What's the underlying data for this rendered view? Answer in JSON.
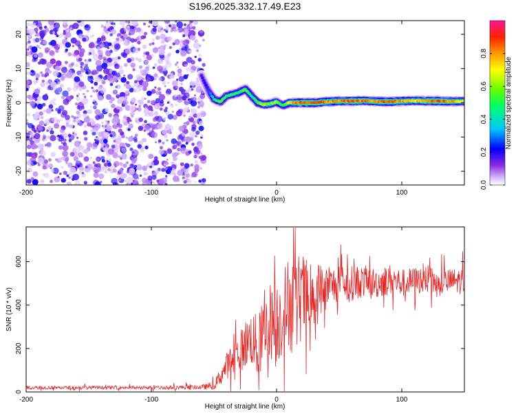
{
  "title": "S196.2025.332.17.49.E23",
  "colors": {
    "snr_line": "#ee2222",
    "axis": "#000000"
  },
  "chart_data": [
    {
      "type": "heatmap",
      "title": "S196.2025.332.17.49.E23",
      "xlabel": "Height of straight line (km)",
      "ylabel": "Frequency (Hz)",
      "xlim": [
        -200,
        150
      ],
      "ylim": [
        -24,
        24
      ],
      "xticks": [
        -200,
        -100,
        0,
        100
      ],
      "xtick_labels": [
        "-200",
        "-100",
        "0",
        "100"
      ],
      "yticks": [
        -20,
        -10,
        0,
        10,
        20
      ],
      "ytick_labels": [
        "-20",
        "-10",
        "0",
        "10",
        "20"
      ],
      "noise_region": {
        "x_from": -200,
        "x_to": -58,
        "description": "scattered low-amplitude purple noise"
      },
      "ridge": {
        "x": [
          -60,
          -55,
          -50,
          -45,
          -40,
          -35,
          -30,
          -25,
          -20,
          -15,
          -10,
          -5,
          0,
          5,
          10,
          15,
          20,
          30,
          40,
          50,
          60,
          70,
          80,
          90,
          100,
          110,
          120,
          130,
          140,
          150
        ],
        "frequency": [
          8,
          4,
          1,
          0.3,
          2,
          2.5,
          3,
          4,
          2,
          0,
          -0.5,
          -0.3,
          0.3,
          -0.8,
          0,
          0,
          0,
          0,
          0.3,
          0.5,
          0.5,
          0.6,
          0.4,
          0.3,
          0.5,
          0.6,
          0.5,
          0.5,
          0.4,
          0.4
        ],
        "amplitude": [
          0.2,
          0.25,
          0.45,
          0.6,
          0.5,
          0.55,
          0.55,
          0.6,
          0.5,
          0.6,
          0.7,
          0.65,
          0.7,
          0.5,
          0.75,
          0.9,
          0.95,
          0.95,
          0.9,
          0.85,
          0.95,
          0.9,
          0.85,
          0.95,
          0.85,
          0.8,
          0.9,
          0.95,
          0.85,
          0.8
        ]
      },
      "colorbar": {
        "label": "Normalized spectral amplitude",
        "range": [
          0,
          1
        ],
        "ticks": [
          0.0,
          0.2,
          0.4,
          0.6,
          0.8
        ],
        "tick_labels": [
          "0.0",
          "0.2",
          "0.4",
          "0.6",
          "0.8"
        ],
        "colormap": "purple-blue-cyan-green-yellow-orange-red-magenta"
      }
    },
    {
      "type": "line",
      "xlabel": "Height of straight line (km)",
      "ylabel": "SNR (10 * v/v)",
      "xlim": [
        -200,
        150
      ],
      "ylim": [
        0,
        760
      ],
      "xticks": [
        -200,
        -100,
        0,
        100
      ],
      "xtick_labels": [
        "-200",
        "-100",
        "0",
        "100"
      ],
      "yticks": [
        0,
        200,
        400,
        600
      ],
      "ytick_labels": [
        "0",
        "200",
        "400",
        "600"
      ],
      "series": [
        {
          "name": "SNR",
          "color": "#ee2222",
          "envelope_x": [
            -200,
            -150,
            -100,
            -60,
            -50,
            -45,
            -40,
            -35,
            -30,
            -25,
            -20,
            -15,
            -10,
            -5,
            0,
            5,
            10,
            15,
            20,
            25,
            30,
            40,
            50,
            60,
            70,
            80,
            90,
            100,
            110,
            120,
            130,
            140,
            150
          ],
          "envelope_y": [
            20,
            20,
            20,
            22,
            30,
            70,
            120,
            150,
            180,
            220,
            250,
            200,
            280,
            330,
            320,
            360,
            420,
            380,
            450,
            420,
            460,
            480,
            500,
            500,
            510,
            500,
            520,
            500,
            510,
            520,
            500,
            510,
            510
          ],
          "variability": [
            8,
            8,
            8,
            10,
            20,
            40,
            60,
            80,
            90,
            110,
            130,
            150,
            160,
            180,
            200,
            200,
            220,
            250,
            200,
            180,
            150,
            100,
            80,
            80,
            75,
            70,
            70,
            65,
            65,
            65,
            60,
            60,
            60
          ]
        }
      ]
    }
  ]
}
